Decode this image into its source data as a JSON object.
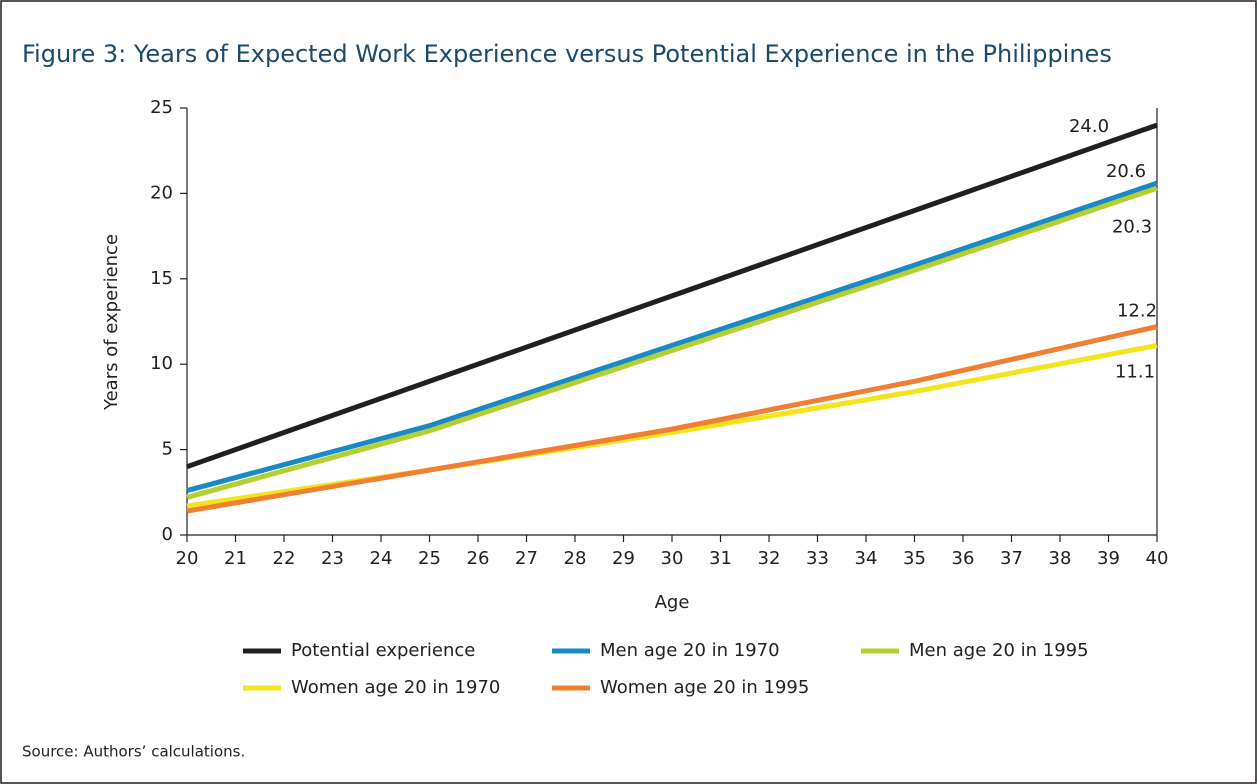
{
  "chart_data": {
    "type": "line",
    "title": "Figure 3: Years of Expected Work Experience versus Potential Experience in the Philippines",
    "x_label": "Age",
    "y_label": "Years of experience",
    "source": "Source: Authors’ calculations.",
    "x": [
      20,
      25,
      30,
      35,
      40
    ],
    "xlim": [
      20,
      40
    ],
    "xticks": [
      20,
      21,
      22,
      23,
      24,
      25,
      26,
      27,
      28,
      29,
      30,
      31,
      32,
      33,
      34,
      35,
      36,
      37,
      38,
      39,
      40
    ],
    "ylim": [
      0,
      25
    ],
    "yticks": [
      0,
      5,
      10,
      15,
      20,
      25
    ],
    "series": [
      {
        "name": "Potential experience",
        "color": "#231f20",
        "values": [
          4,
          9,
          14,
          19,
          24
        ],
        "value_labels": [
          null,
          null,
          null,
          null,
          "24.0"
        ]
      },
      {
        "name": "Men age 20 in 1970",
        "color": "#1a8ac6",
        "values": [
          2.6,
          6.4,
          11.1,
          15.8,
          20.6
        ],
        "value_labels": [
          null,
          null,
          null,
          null,
          "20.6"
        ]
      },
      {
        "name": "Men age 20 in 1995",
        "color": "#b5cf2f",
        "values": [
          2.2,
          6.1,
          10.8,
          15.5,
          20.3
        ],
        "value_labels": [
          null,
          null,
          null,
          null,
          "20.3"
        ]
      },
      {
        "name": "Women age 20 in 1970",
        "color": "#f2e51c",
        "values": [
          1.7,
          3.8,
          6.0,
          8.4,
          11.1
        ],
        "value_labels": [
          null,
          null,
          null,
          null,
          "11.1"
        ]
      },
      {
        "name": "Women age 20 in 1995",
        "color": "#f07f33",
        "values": [
          1.4,
          3.8,
          6.2,
          9.0,
          12.2
        ],
        "value_labels": [
          null,
          null,
          null,
          null,
          "12.2"
        ]
      }
    ]
  }
}
